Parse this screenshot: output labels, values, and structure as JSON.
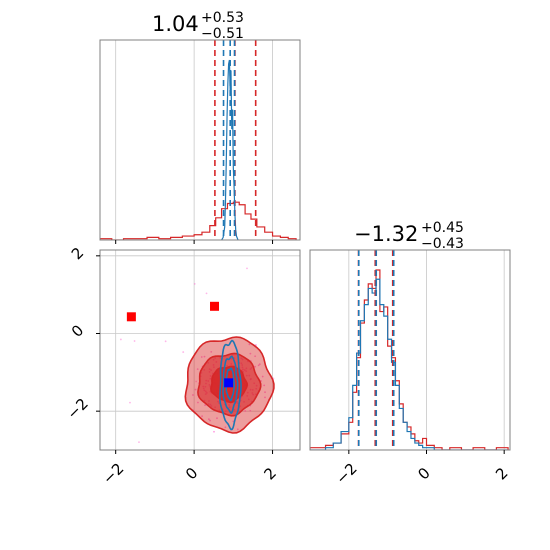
{
  "chart_data": {
    "type": "corner",
    "colors": {
      "red": "#d62728",
      "blue": "#1f77b4",
      "grid": "#c8c8c8",
      "scatter": "#ff6fd4",
      "frame": "#808080"
    },
    "axis_ranges": {
      "p0": [
        -2.4,
        2.7
      ],
      "p1": [
        -3.0,
        2.15
      ]
    },
    "ticks": {
      "p0": [
        -2,
        0,
        2
      ],
      "p1": [
        -2,
        0,
        2
      ]
    },
    "tick_labels": {
      "p0": [
        "−2",
        "0",
        "2"
      ],
      "p1": [
        "−2",
        "0",
        "2"
      ]
    },
    "grid": true,
    "titles": [
      {
        "value": "1.04",
        "plus": "+0.53",
        "minus": "−0.51"
      },
      {
        "value": "−1.32",
        "plus": "+0.45",
        "minus": "−0.43"
      }
    ],
    "quantiles": {
      "p0_red": [
        0.53,
        1.04,
        1.57
      ],
      "p0_blue": [
        0.75,
        0.92,
        1.03
      ],
      "p1_red": [
        -1.75,
        -1.32,
        -0.87
      ],
      "p1_blue": [
        -1.77,
        -1.32,
        -0.87
      ]
    },
    "histograms": {
      "p0_red": {
        "edges": [
          -2.4,
          -2.1,
          -1.8,
          -1.5,
          -1.2,
          -0.9,
          -0.6,
          -0.3,
          0.0,
          0.2,
          0.4,
          0.55,
          0.7,
          0.85,
          1.0,
          1.15,
          1.3,
          1.45,
          1.6,
          1.8,
          2.0,
          2.2,
          2.4,
          2.6
        ],
        "counts": [
          1,
          0,
          1,
          1,
          2,
          1,
          2,
          3,
          4,
          6,
          11,
          17,
          24,
          28,
          29,
          27,
          20,
          16,
          10,
          6,
          3,
          2,
          1
        ]
      },
      "p0_blue": {
        "x": [
          0.7,
          0.74,
          0.78,
          0.8,
          0.82,
          0.84,
          0.86,
          0.88,
          0.9,
          0.92,
          0.94,
          0.96,
          0.98,
          1.0,
          1.02,
          1.04,
          1.06,
          1.08,
          1.12
        ],
        "counts": [
          0,
          2,
          10,
          30,
          60,
          95,
          120,
          135,
          138,
          115,
          130,
          85,
          100,
          55,
          40,
          20,
          8,
          3,
          0
        ]
      },
      "p1_red": {
        "edges": [
          -3.0,
          -2.6,
          -2.4,
          -2.2,
          -2.0,
          -1.9,
          -1.8,
          -1.7,
          -1.6,
          -1.5,
          -1.4,
          -1.3,
          -1.2,
          -1.1,
          -1.0,
          -0.9,
          -0.8,
          -0.7,
          -0.6,
          -0.5,
          -0.4,
          -0.3,
          -0.2,
          -0.1,
          0.0,
          0.2,
          0.4,
          0.6,
          0.9,
          1.2,
          1.5,
          1.8,
          2.1
        ],
        "counts": [
          1,
          2,
          3,
          7,
          12,
          25,
          40,
          55,
          65,
          72,
          70,
          78,
          60,
          62,
          45,
          40,
          30,
          20,
          12,
          10,
          7,
          4,
          3,
          5,
          2,
          1,
          0,
          1,
          0,
          1,
          0,
          1
        ]
      },
      "p1_blue": {
        "edges": [
          -3.0,
          -2.6,
          -2.4,
          -2.2,
          -2.0,
          -1.9,
          -1.8,
          -1.7,
          -1.6,
          -1.5,
          -1.4,
          -1.3,
          -1.2,
          -1.1,
          -1.0,
          -0.9,
          -0.8,
          -0.7,
          -0.6,
          -0.5,
          -0.4,
          -0.3,
          -0.2,
          -0.1,
          0.0,
          0.2,
          0.4,
          0.6,
          0.9,
          1.2,
          1.5,
          1.8,
          2.1
        ],
        "counts": [
          0,
          1,
          3,
          8,
          14,
          28,
          42,
          56,
          63,
          70,
          68,
          74,
          63,
          58,
          48,
          38,
          28,
          18,
          12,
          8,
          5,
          3,
          2,
          1,
          1,
          0,
          0,
          0,
          0,
          0,
          0,
          0
        ]
      }
    },
    "contours": {
      "red": [
        {
          "cx": 0.88,
          "cy": -1.3,
          "rx": 1.1,
          "ry": 1.2
        },
        {
          "cx": 0.88,
          "cy": -1.3,
          "rx": 0.78,
          "ry": 0.78
        },
        {
          "cx": 0.88,
          "cy": -1.3,
          "rx": 0.45,
          "ry": 0.45
        }
      ],
      "blue": [
        {
          "cx": 0.92,
          "cy": -1.3,
          "rx": 0.26,
          "ry": 1.1
        },
        {
          "cx": 0.92,
          "cy": -1.3,
          "rx": 0.18,
          "ry": 0.7
        },
        {
          "cx": 0.92,
          "cy": -1.3,
          "rx": 0.1,
          "ry": 0.4
        }
      ]
    },
    "markers": [
      {
        "x": -1.6,
        "y": 0.43,
        "color": "#ff0000"
      },
      {
        "x": 0.52,
        "y": 0.7,
        "color": "#ff0000"
      },
      {
        "x": 0.88,
        "y": -1.27,
        "color": "#0000ff"
      }
    ]
  }
}
